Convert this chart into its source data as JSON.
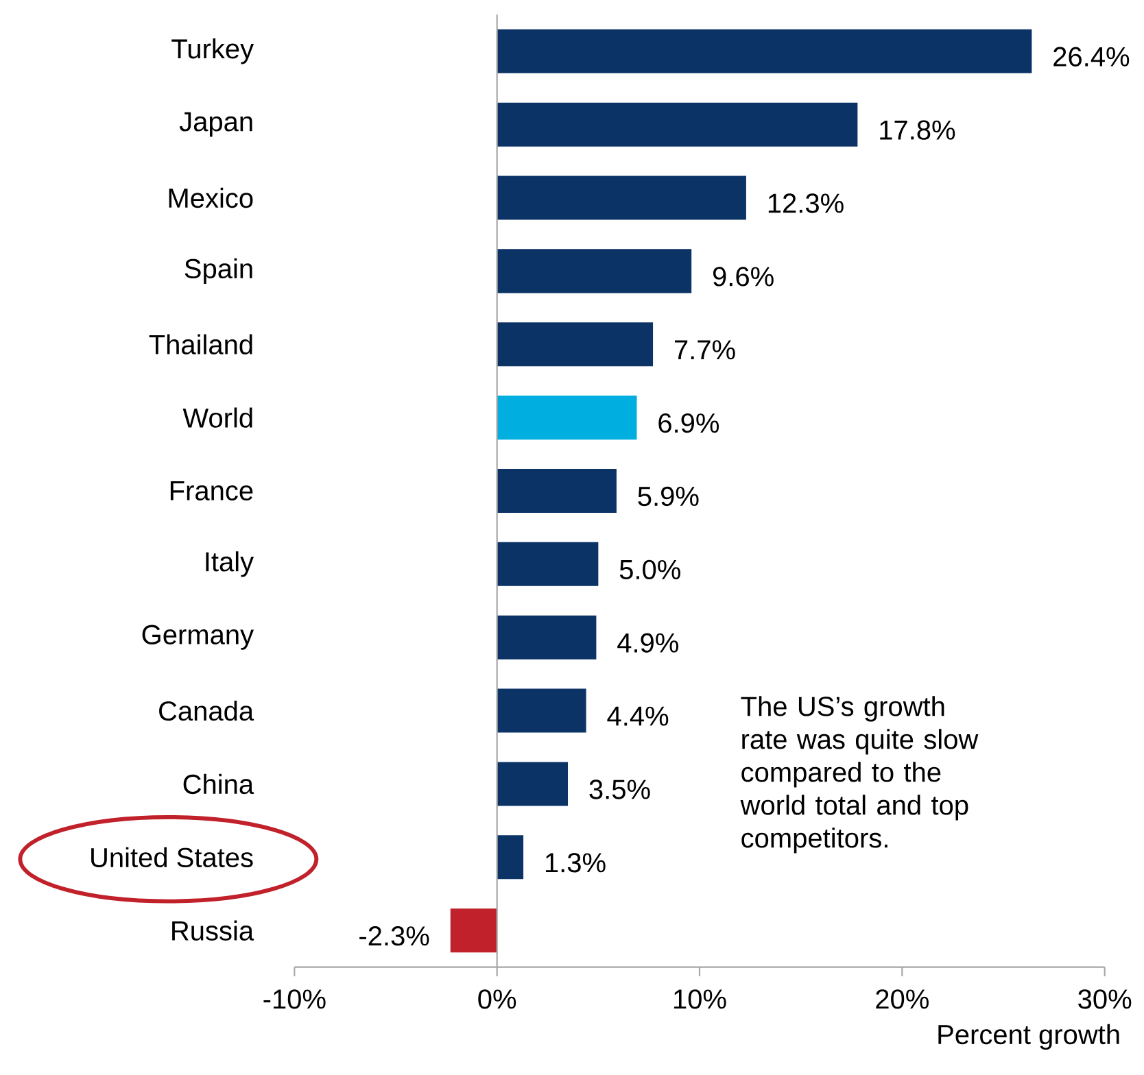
{
  "chart_data": {
    "type": "bar",
    "orientation": "horizontal",
    "categories": [
      "Turkey",
      "Japan",
      "Mexico",
      "Spain",
      "Thailand",
      "World",
      "France",
      "Italy",
      "Germany",
      "Canada",
      "China",
      "United States",
      "Russia"
    ],
    "values": [
      26.4,
      17.8,
      12.3,
      9.6,
      7.7,
      6.9,
      5.9,
      5.0,
      4.9,
      4.4,
      3.5,
      1.3,
      -2.3
    ],
    "colors": [
      "#0c3366",
      "#0c3366",
      "#0c3366",
      "#0c3366",
      "#0c3366",
      "#00aedf",
      "#0c3366",
      "#0c3366",
      "#0c3366",
      "#0c3366",
      "#0c3366",
      "#0c3366",
      "#c1212a"
    ],
    "value_labels": [
      "26.4%",
      "17.8%",
      "12.3%",
      "9.6%",
      "7.7%",
      "6.9%",
      "5.9%",
      "5.0%",
      "4.9%",
      "4.4%",
      "3.5%",
      "1.3%",
      "-2.3%"
    ],
    "xlim": [
      -10,
      30
    ],
    "xticks": [
      {
        "value": -10,
        "label": "-10%"
      },
      {
        "value": 0,
        "label": "0%"
      },
      {
        "value": 10,
        "label": "10%"
      },
      {
        "value": 20,
        "label": "20%"
      },
      {
        "value": 30,
        "label": "30%"
      }
    ],
    "xlabel": "Percent growth",
    "annotations": [
      "The US’s growth rate was quite slow compared to the world total and top competitors."
    ]
  }
}
